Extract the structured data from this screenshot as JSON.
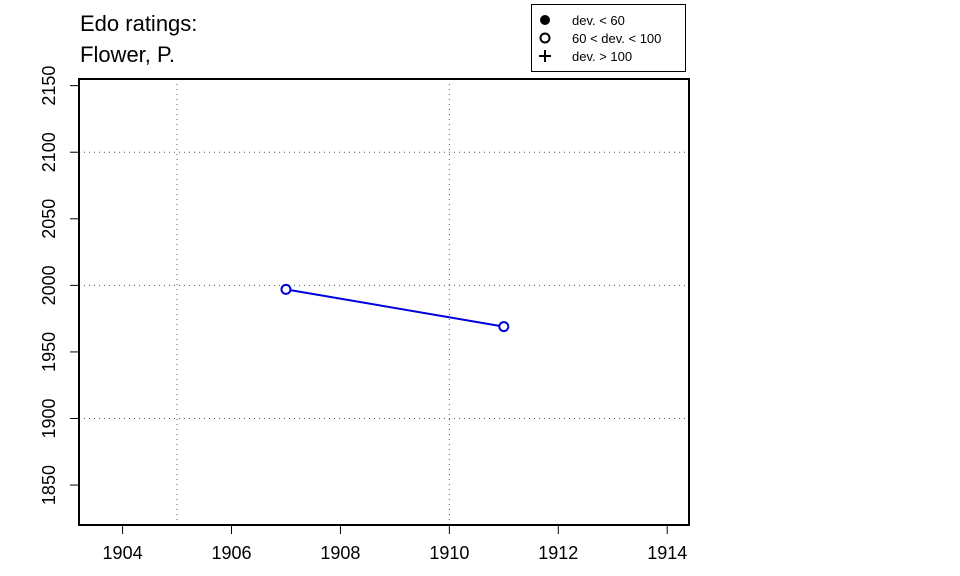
{
  "chart_data": {
    "type": "line",
    "title": "Edo ratings:",
    "subtitle": "Flower, P.",
    "xlabel": "",
    "ylabel": "",
    "xlim": [
      1903.2,
      1914.4
    ],
    "ylim": [
      1820,
      2155
    ],
    "xticks": [
      "1904",
      "1906",
      "1908",
      "1910",
      "1912",
      "1914"
    ],
    "xtick_values": [
      1904,
      1906,
      1908,
      1910,
      1912,
      1914
    ],
    "yticks": [
      "1850",
      "1900",
      "1950",
      "2000",
      "2050",
      "2100",
      "2150"
    ],
    "ytick_values": [
      1850,
      1900,
      1950,
      2000,
      2050,
      2100,
      2150
    ],
    "x_grid": [
      1905,
      1910
    ],
    "y_grid": [
      1900,
      2000,
      2100
    ],
    "grid": true,
    "legend_position": "top-right",
    "legend": [
      {
        "symbol": "filled-circle",
        "label": "dev. < 60"
      },
      {
        "symbol": "open-circle",
        "label": "60 < dev. < 100"
      },
      {
        "symbol": "plus",
        "label": "dev. > 100"
      }
    ],
    "series": [
      {
        "color": "#0000dd",
        "marker": "open-circle",
        "x": [
          1907,
          1911
        ],
        "y": [
          1997,
          1969
        ]
      }
    ]
  }
}
